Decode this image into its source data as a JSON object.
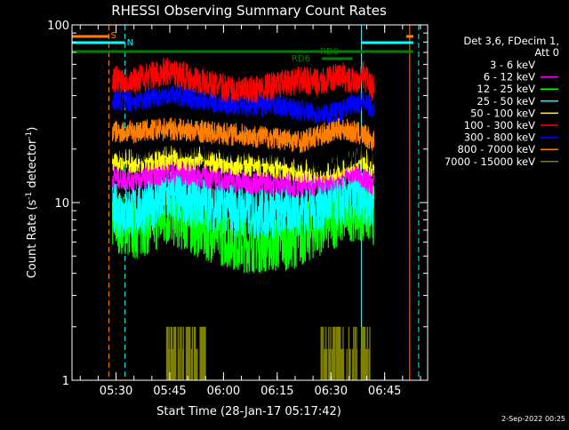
{
  "chart_data": {
    "type": "line",
    "title": "RHESSI Observing Summary Count Rates",
    "xlabel": "Start Time (28-Jan-17 05:17:42)",
    "ylabel": "Count Rate (s",
    "ylabel_sup": "-1",
    "ylabel_tail": " detector",
    "ylabel_close": ")",
    "y_scale": "log",
    "ylim": [
      1,
      100
    ],
    "y_ticks": [
      {
        "value": 1,
        "label": "1"
      },
      {
        "value": 10,
        "label": "10"
      },
      {
        "value": 100,
        "label": "100"
      }
    ],
    "xlim": [
      "05:17:42",
      "06:57:00"
    ],
    "x_ticks": [
      {
        "time": "05:30",
        "label": "05:30"
      },
      {
        "time": "05:45",
        "label": "05:45"
      },
      {
        "time": "06:00",
        "label": "06:00"
      },
      {
        "time": "06:15",
        "label": "06:15"
      },
      {
        "time": "06:30",
        "label": "06:30"
      },
      {
        "time": "06:45",
        "label": "06:45"
      }
    ],
    "legend_header": [
      "Det 3,6, FDecim 1,",
      "Att 0"
    ],
    "legend_position": "right",
    "series": [
      {
        "name": "3 - 6 keV",
        "color": "#000000",
        "x": [
          "05:29:00",
          "05:35:00",
          "05:45:00",
          "05:55:00",
          "06:05:00",
          "06:15:00",
          "06:22:00",
          "06:27:00",
          "06:33:00",
          "06:36:00",
          "06:39:00",
          "06:42:00"
        ],
        "y": [
          21,
          20,
          22,
          21,
          20,
          19,
          18,
          17,
          18,
          19,
          21,
          18
        ]
      },
      {
        "name": "6 - 12 keV",
        "color": "#ff00ff",
        "x": [
          "05:29:00",
          "05:35:00",
          "05:45:00",
          "05:55:00",
          "06:05:00",
          "06:15:00",
          "06:22:00",
          "06:27:00",
          "06:33:00",
          "06:36:00",
          "06:39:00",
          "06:42:00"
        ],
        "y": [
          14,
          13.5,
          15,
          14,
          13,
          13,
          12.5,
          13,
          14,
          15,
          14,
          12.5
        ]
      },
      {
        "name": "12 - 25 keV",
        "color": "#00ff00",
        "x": [
          "05:29:00",
          "05:35:00",
          "05:45:00",
          "05:55:00",
          "06:05:00",
          "06:15:00",
          "06:22:00",
          "06:27:00",
          "06:33:00",
          "06:36:00",
          "06:39:00",
          "06:42:00"
        ],
        "y": [
          8,
          7,
          8.5,
          7,
          6,
          6,
          6.5,
          7.5,
          8.5,
          9,
          9,
          8.5
        ]
      },
      {
        "name": "25 - 50 keV",
        "color": "#00ffff",
        "x": [
          "05:29:00",
          "05:35:00",
          "05:45:00",
          "05:55:00",
          "06:05:00",
          "06:15:00",
          "06:22:00",
          "06:27:00",
          "06:33:00",
          "06:36:00",
          "06:39:00",
          "06:42:00"
        ],
        "y": [
          9,
          9,
          11,
          10,
          9,
          9,
          9.5,
          10,
          10.5,
          11,
          11,
          10
        ]
      },
      {
        "name": "50 - 100 keV",
        "color": "#ffff00",
        "x": [
          "05:29:00",
          "05:35:00",
          "05:45:00",
          "05:55:00",
          "06:05:00",
          "06:15:00",
          "06:22:00",
          "06:27:00",
          "06:33:00",
          "06:36:00",
          "06:39:00",
          "06:42:00"
        ],
        "y": [
          17.5,
          17,
          18,
          17.5,
          16.5,
          16,
          15,
          15,
          16,
          17,
          18,
          16
        ]
      },
      {
        "name": "100 - 300 keV",
        "color": "#ff0000",
        "x": [
          "05:29:00",
          "05:35:00",
          "05:45:00",
          "05:55:00",
          "06:05:00",
          "06:15:00",
          "06:22:00",
          "06:27:00",
          "06:33:00",
          "06:36:00",
          "06:39:00",
          "06:42:00"
        ],
        "y": [
          50,
          49,
          55,
          47,
          42,
          46,
          49,
          47,
          52,
          48,
          52,
          43
        ]
      },
      {
        "name": "300 - 800 keV",
        "color": "#0000ff",
        "x": [
          "05:29:00",
          "05:35:00",
          "05:45:00",
          "05:55:00",
          "06:05:00",
          "06:15:00",
          "06:22:00",
          "06:27:00",
          "06:33:00",
          "06:36:00",
          "06:39:00",
          "06:42:00"
        ],
        "y": [
          38,
          37,
          41,
          37,
          35,
          35,
          33,
          31,
          33,
          36,
          37,
          33
        ]
      },
      {
        "name": "800 - 7000 keV",
        "color": "#ff8000",
        "x": [
          "05:29:00",
          "05:35:00",
          "05:45:00",
          "05:55:00",
          "06:05:00",
          "06:15:00",
          "06:22:00",
          "06:27:00",
          "06:33:00",
          "06:36:00",
          "06:39:00",
          "06:42:00"
        ],
        "y": [
          25,
          25,
          26,
          25,
          24,
          23,
          22,
          24,
          26,
          25,
          24,
          22
        ]
      },
      {
        "name": "7000 - 15000 keV",
        "color": "#808000",
        "x": [
          "05:44:00",
          "05:48:00",
          "05:52:00",
          "05:55:00",
          "06:27:00",
          "06:30:00",
          "06:33:00",
          "06:36:00",
          "06:39:00",
          "06:41:00"
        ],
        "y": [
          1,
          2,
          1.5,
          1,
          1,
          2,
          1.5,
          2,
          1.5,
          2
        ]
      }
    ],
    "annotations": [
      {
        "text": "S",
        "color": "#ff8000"
      },
      {
        "text": "N",
        "color": "#00ffff"
      },
      {
        "text": "RD0",
        "color": "#008000"
      },
      {
        "text": "RD6",
        "color": "#008000"
      }
    ]
  },
  "timestamp": "2-Sep-2022 00:25"
}
